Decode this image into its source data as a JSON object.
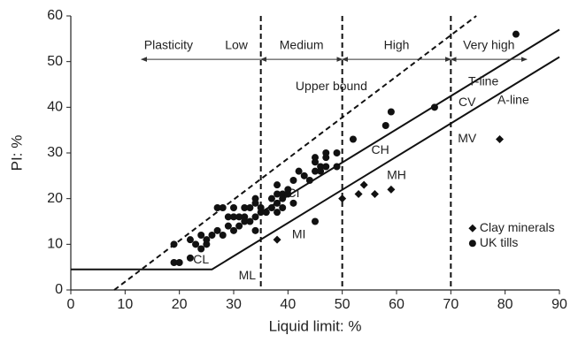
{
  "chart_data": {
    "type": "scatter",
    "x_label": "Liquid limit: %",
    "y_label": "PI: %",
    "xlim": [
      0,
      90
    ],
    "xticks": [
      0,
      10,
      20,
      30,
      40,
      50,
      60,
      70,
      80,
      90
    ],
    "ylim": [
      0,
      60
    ],
    "yticks": [
      0,
      10,
      20,
      30,
      40,
      50,
      60
    ],
    "grid": false,
    "series": [
      {
        "name": "Clay minerals",
        "marker": "diamond",
        "color": "#111111",
        "x": [
          38,
          50,
          53,
          54,
          56,
          59,
          79
        ],
        "values": [
          11,
          20,
          21,
          23,
          21,
          22,
          33
        ]
      },
      {
        "name": "UK tills",
        "marker": "circle",
        "color": "#111111",
        "x": [
          19,
          19,
          20,
          22,
          22,
          23,
          24,
          24,
          25,
          25,
          26,
          27,
          27,
          28,
          28,
          29,
          29,
          30,
          30,
          30,
          31,
          31,
          32,
          32,
          32,
          33,
          33,
          34,
          34,
          34,
          34,
          35,
          35,
          36,
          37,
          37,
          38,
          38,
          38,
          38,
          39,
          39,
          39,
          40,
          40,
          41,
          41,
          42,
          43,
          44,
          45,
          45,
          45,
          46,
          46,
          47,
          47,
          47,
          49,
          49,
          52,
          58,
          59,
          67,
          82,
          45
        ],
        "values": [
          10,
          6,
          6,
          11,
          7,
          10,
          9,
          12,
          10,
          11,
          12,
          13,
          18,
          18,
          12,
          14,
          16,
          16,
          18,
          13,
          16,
          14,
          18,
          16,
          15,
          15,
          18,
          13,
          16,
          19,
          20,
          17,
          18,
          17,
          18,
          20,
          19,
          21,
          23,
          17,
          21,
          20,
          18,
          21,
          22,
          24,
          19,
          26,
          25,
          24,
          26,
          28,
          29,
          27,
          26,
          29,
          30,
          27,
          30,
          27,
          33,
          36,
          39,
          40,
          56,
          15
        ]
      }
    ],
    "lines": [
      {
        "name": "A-line",
        "style": "solid",
        "x": [
          0,
          26,
          90
        ],
        "y": [
          4.5,
          4.5,
          51
        ]
      },
      {
        "name": "T-line",
        "style": "solid",
        "x": [
          35,
          90
        ],
        "y": [
          17,
          57
        ]
      },
      {
        "name": "Upper bound",
        "style": "dashed",
        "x": [
          8,
          74.7
        ],
        "y": [
          0,
          60
        ]
      }
    ],
    "boundaries": [
      35,
      50,
      70
    ],
    "annotations": [
      "Plasticity",
      "Low",
      "Medium",
      "High",
      "Very high",
      "Upper bound",
      "T-line",
      "A-line",
      "CV",
      "MV",
      "CH",
      "MH",
      "CI",
      "MI",
      "CL",
      "ML"
    ]
  }
}
